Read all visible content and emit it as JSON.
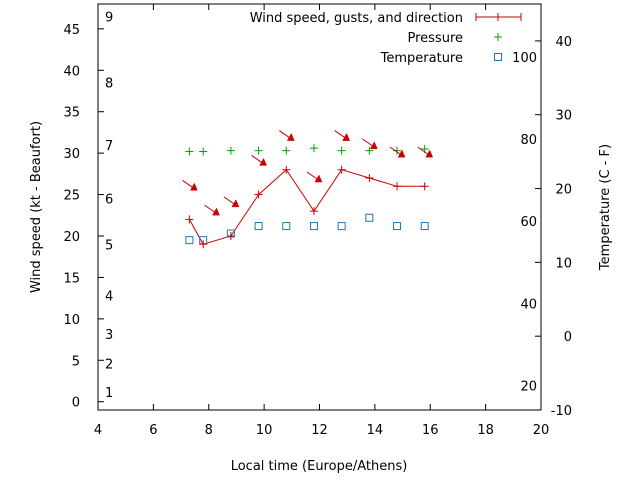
{
  "chart_data": {
    "type": "line",
    "xlabel": "Local time (Europe/Athens)",
    "ylabel": "Wind speed (kt - Beaufort)",
    "y2label": "Temperature (C - F)",
    "xlim": [
      4,
      20
    ],
    "xticks": [
      4,
      6,
      8,
      10,
      12,
      14,
      16,
      18,
      20
    ],
    "ylim": [
      -1,
      48
    ],
    "yticks": [
      0,
      5,
      10,
      15,
      20,
      25,
      30,
      35,
      40,
      45
    ],
    "y2lim": [
      -10,
      45
    ],
    "y2ticks": [
      -10,
      0,
      10,
      20,
      30,
      40
    ],
    "beaufort_labels": [
      {
        "label": "1",
        "y": 1.2
      },
      {
        "label": "2",
        "y": 4.6
      },
      {
        "label": "3",
        "y": 8.2
      },
      {
        "label": "4",
        "y": 12.8
      },
      {
        "label": "5",
        "y": 19.0
      },
      {
        "label": "6",
        "y": 24.5
      },
      {
        "label": "7",
        "y": 31.0
      },
      {
        "label": "8",
        "y": 38.5
      },
      {
        "label": "9",
        "y": 46.5
      }
    ],
    "fahrenheit_labels": [
      {
        "label": "20",
        "y2": -6.7
      },
      {
        "label": "40",
        "y2": 4.4
      },
      {
        "label": "60",
        "y2": 15.6
      },
      {
        "label": "80",
        "y2": 26.7
      },
      {
        "label": "100",
        "y2": 37.8
      }
    ],
    "legend_position": "top-right",
    "series": [
      {
        "name": "Wind speed, gusts, and direction",
        "color": "#cc0000",
        "x": [
          7.3,
          7.8,
          8.8,
          9.8,
          10.8,
          11.8,
          12.8,
          13.8,
          14.8,
          15.8
        ],
        "y": [
          22,
          19,
          20,
          25,
          28,
          23,
          28,
          27,
          26,
          26
        ]
      },
      {
        "name": "Pressure",
        "color": "#00a000",
        "x": [
          7.3,
          7.8,
          8.8,
          9.8,
          10.8,
          11.8,
          12.8,
          13.8,
          14.8,
          15.8
        ],
        "y": [
          30.2,
          30.2,
          30.3,
          30.3,
          30.3,
          30.6,
          30.3,
          30.3,
          30.3,
          30.5
        ]
      },
      {
        "name": "Temperature",
        "color": "#1f77b4",
        "x": [
          7.3,
          7.8,
          8.8,
          9.8,
          10.8,
          11.8,
          12.8,
          13.8,
          14.8,
          15.8
        ],
        "y": [
          19.5,
          19.5,
          20.3,
          21.2,
          21.2,
          21.2,
          21.2,
          22.2,
          21.2,
          21.2
        ]
      }
    ],
    "wind_arrows": [
      {
        "x": 7.3,
        "y": 26
      },
      {
        "x": 8.1,
        "y": 23
      },
      {
        "x": 8.8,
        "y": 24
      },
      {
        "x": 9.8,
        "y": 29
      },
      {
        "x": 10.8,
        "y": 32
      },
      {
        "x": 11.8,
        "y": 27
      },
      {
        "x": 12.8,
        "y": 32
      },
      {
        "x": 13.8,
        "y": 31
      },
      {
        "x": 14.8,
        "y": 30
      },
      {
        "x": 15.8,
        "y": 30
      }
    ]
  }
}
